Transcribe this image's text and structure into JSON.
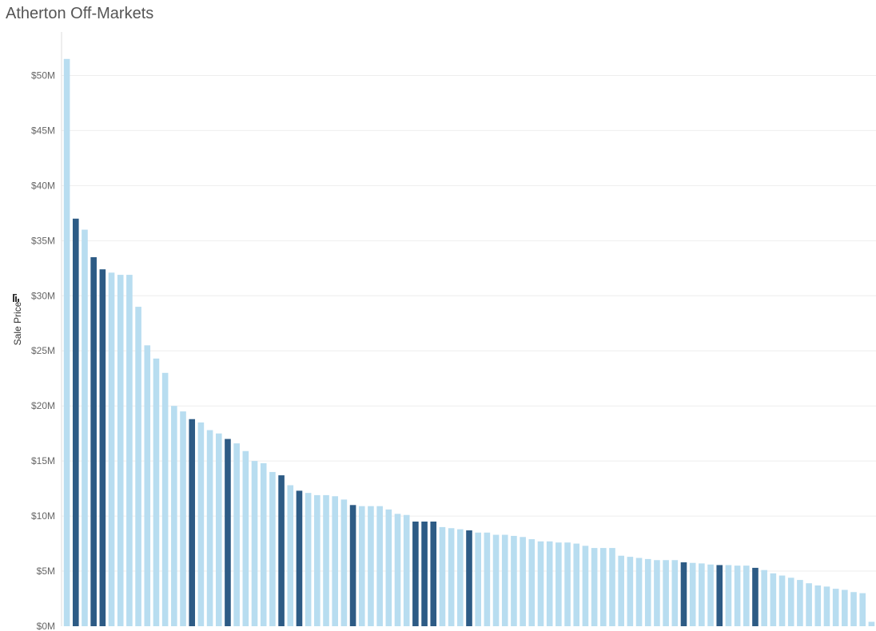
{
  "chart_data": {
    "type": "bar",
    "title": "Atherton Off-Markets",
    "xlabel": "",
    "ylabel": "Sale Price",
    "ylim": [
      0,
      52.5
    ],
    "y_unit": "M",
    "y_ticks": [
      0,
      5,
      10,
      15,
      20,
      25,
      30,
      35,
      40,
      45,
      50
    ],
    "y_tick_labels": [
      "$0M",
      "$5M",
      "$10M",
      "$15M",
      "$20M",
      "$25M",
      "$30M",
      "$35M",
      "$40M",
      "$45M",
      "$50M"
    ],
    "grid": "horizontal",
    "legend": "none",
    "colors": {
      "light": "#b8ddf0",
      "dark": "#2d5b85",
      "grid": "#eeeeee",
      "axis": "#dddddd"
    },
    "values": [
      51.5,
      37.0,
      36.0,
      33.5,
      32.4,
      32.1,
      31.9,
      31.9,
      29.0,
      25.5,
      24.3,
      23.0,
      20.0,
      19.5,
      18.8,
      18.5,
      17.8,
      17.5,
      17.0,
      16.6,
      15.9,
      15.0,
      14.8,
      14.0,
      13.7,
      12.8,
      12.3,
      12.1,
      11.9,
      11.9,
      11.8,
      11.5,
      11.0,
      10.9,
      10.9,
      10.9,
      10.6,
      10.2,
      10.1,
      9.5,
      9.5,
      9.5,
      9.0,
      8.9,
      8.8,
      8.7,
      8.5,
      8.5,
      8.3,
      8.3,
      8.2,
      8.1,
      7.9,
      7.7,
      7.7,
      7.6,
      7.6,
      7.5,
      7.3,
      7.1,
      7.1,
      7.1,
      6.4,
      6.3,
      6.2,
      6.1,
      6.0,
      6.0,
      6.0,
      5.8,
      5.75,
      5.7,
      5.6,
      5.55,
      5.55,
      5.5,
      5.5,
      5.3,
      5.1,
      4.8,
      4.6,
      4.4,
      4.2,
      3.9,
      3.7,
      3.6,
      3.4,
      3.3,
      3.1,
      3.0,
      0.4
    ],
    "highlighted": [
      false,
      true,
      false,
      true,
      true,
      false,
      false,
      false,
      false,
      false,
      false,
      false,
      false,
      false,
      true,
      false,
      false,
      false,
      true,
      false,
      false,
      false,
      false,
      false,
      true,
      false,
      true,
      false,
      false,
      false,
      false,
      false,
      true,
      false,
      false,
      false,
      false,
      false,
      false,
      true,
      true,
      true,
      false,
      false,
      false,
      true,
      false,
      false,
      false,
      false,
      false,
      false,
      false,
      false,
      false,
      false,
      false,
      false,
      false,
      false,
      false,
      false,
      false,
      false,
      false,
      false,
      false,
      false,
      false,
      true,
      false,
      false,
      false,
      true,
      false,
      false,
      false,
      true,
      false,
      false,
      false,
      false,
      false,
      false,
      false,
      false,
      false,
      false,
      false,
      false,
      false
    ]
  }
}
